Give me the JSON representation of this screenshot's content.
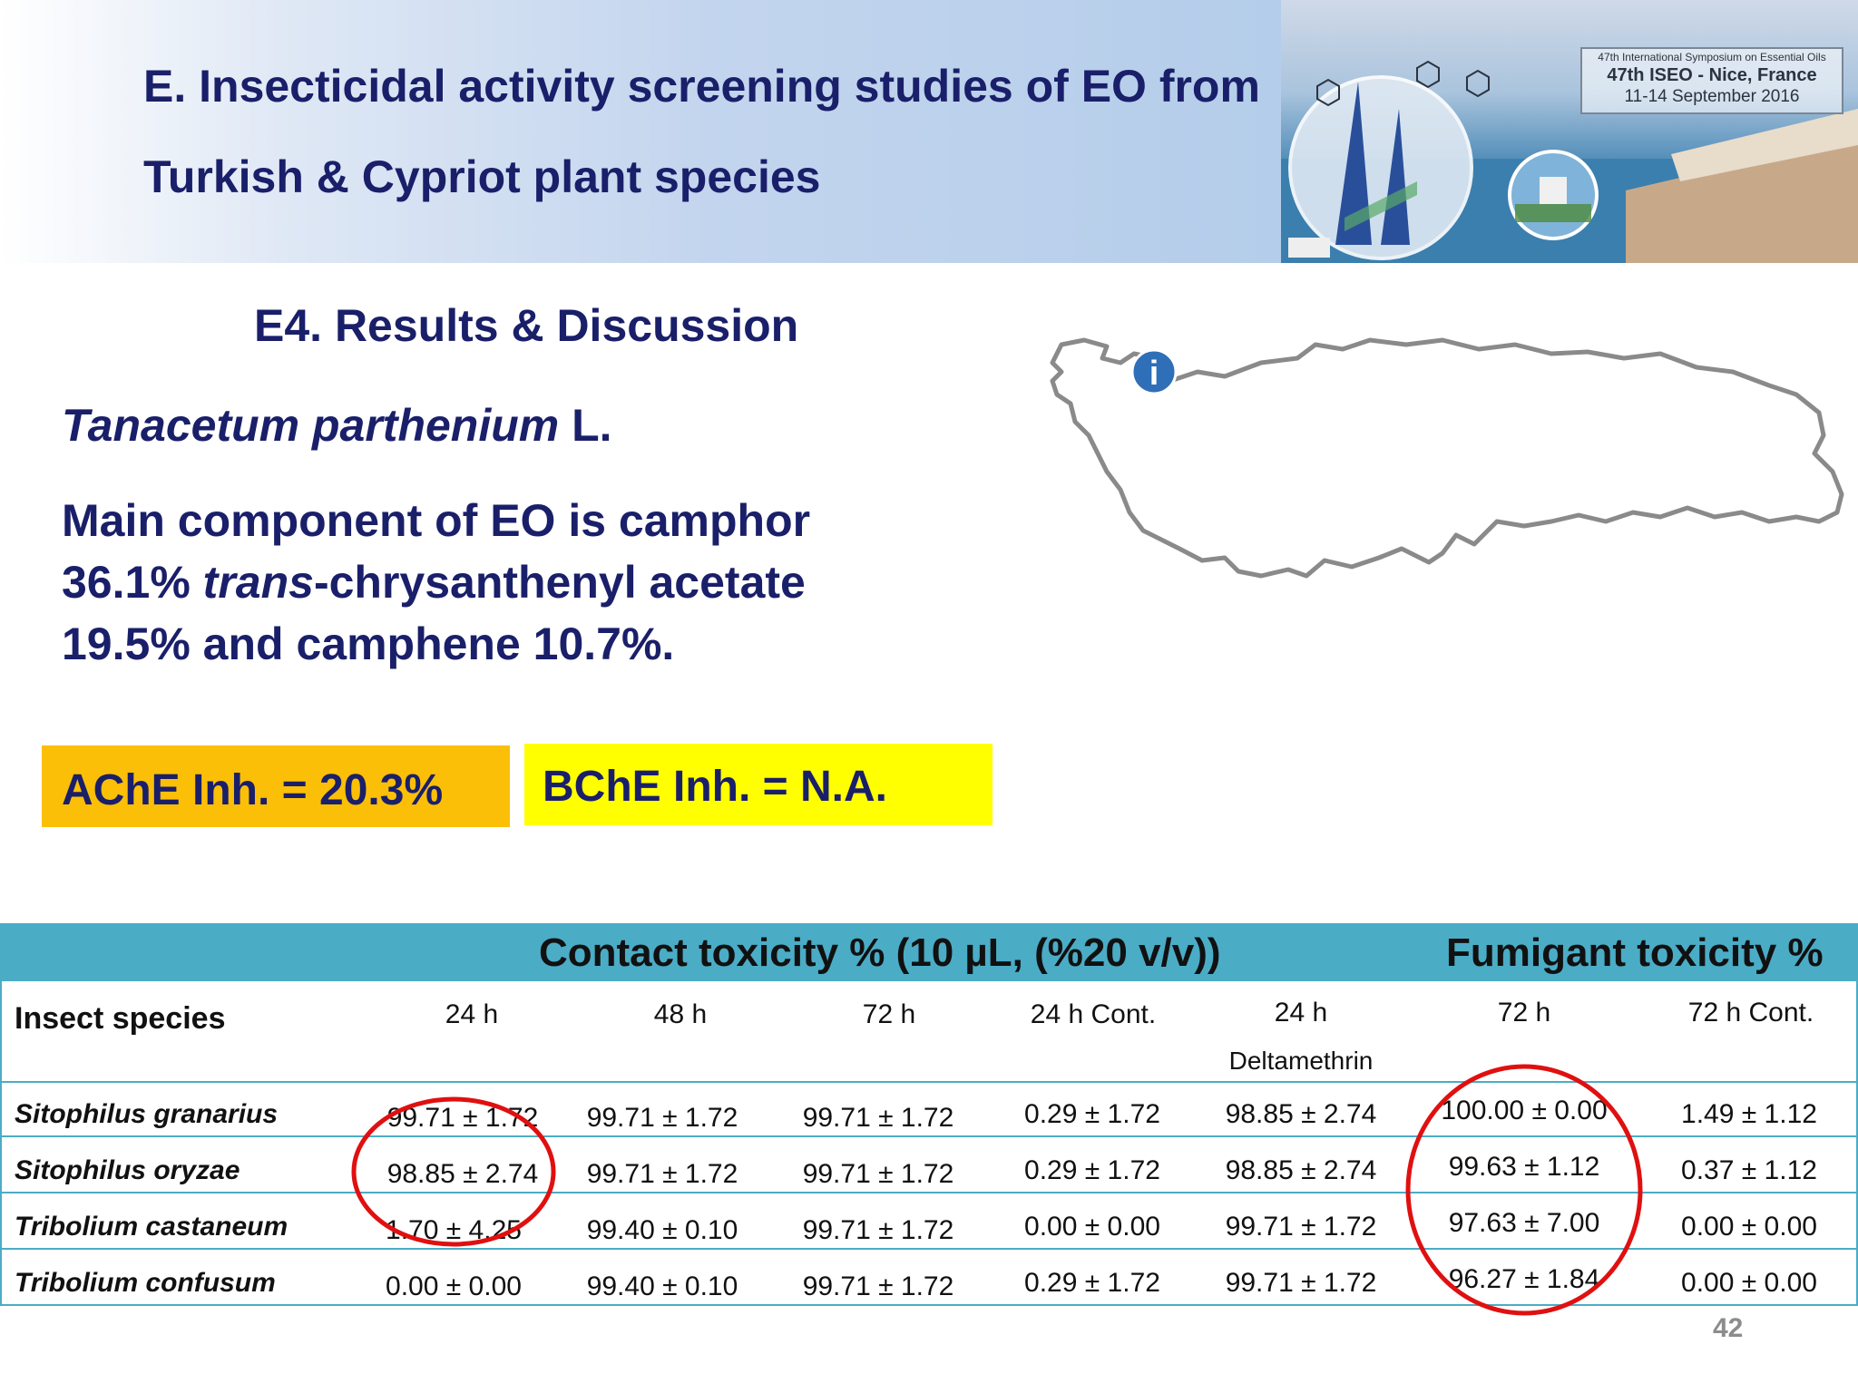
{
  "header": {
    "title_line1": "E. Insecticidal activity screening studies of EO from",
    "title_line2": "Turkish & Cypriot plant species"
  },
  "banner": {
    "line1": "47th International Symposium on Essential Oils",
    "line2": "47th ISEO - Nice, France",
    "line3": "11-14 September 2016"
  },
  "subtitle": "E4. Results & Discussion",
  "species": {
    "italic": "Tanacetum parthenium",
    "suffix": " L."
  },
  "description": {
    "line1": "Main component of EO is camphor",
    "line2_prefix": "36.1% ",
    "line2_italic": "trans",
    "line2_suffix": "-chrysanthenyl acetate",
    "line3": "19.5% and camphene 10.7%."
  },
  "boxes": {
    "ache": "AChE Inh. = 20.3%",
    "bche": "BChE Inh. = N.A.",
    "ache_color": "#fbbf07",
    "bche_color": "#ffff00"
  },
  "map": {
    "marker_label": "i",
    "marker_color": "#2e6fb8"
  },
  "table": {
    "header_color": "#4bacc6",
    "group_contact": "Contact toxicity %  (10 µL, (%20 v/v))",
    "group_fumigant": "Fumigant toxicity %",
    "row_header": "Insect species",
    "columns": [
      "24 h",
      "48 h",
      "72 h",
      "24 h Cont.",
      "24 h",
      "72 h",
      "72 h Cont."
    ],
    "column_sub": "Deltamethrin",
    "rows": [
      {
        "species": "Sitophilus granarius",
        "values": [
          "99.71 ± 1.72",
          "99.71 ± 1.72",
          "99.71 ± 1.72",
          "0.29 ± 1.72",
          "98.85 ± 2.74",
          "100.00 ± 0.00",
          "1.49 ± 1.12"
        ]
      },
      {
        "species": "Sitophilus oryzae",
        "values": [
          "98.85 ± 2.74",
          "99.71 ± 1.72",
          "99.71 ± 1.72",
          "0.29 ± 1.72",
          "98.85 ± 2.74",
          "99.63 ± 1.12",
          "0.37 ± 1.12"
        ]
      },
      {
        "species": "Tribolium castaneum",
        "values": [
          "1.70 ± 4.25",
          "99.40 ± 0.10",
          "99.71 ± 1.72",
          "0.00 ± 0.00",
          "99.71 ± 1.72",
          "97.63 ± 7.00",
          "0.00 ± 0.00"
        ]
      },
      {
        "species": "Tribolium confusum",
        "values": [
          "0.00 ± 0.00",
          "99.40 ± 0.10",
          "99.71 ± 1.72",
          "0.29 ± 1.72",
          "99.71 ± 1.72",
          "96.27 ± 1.84",
          "0.00 ± 0.00"
        ]
      }
    ]
  },
  "highlight_color": "#e01010",
  "page_number": "42"
}
